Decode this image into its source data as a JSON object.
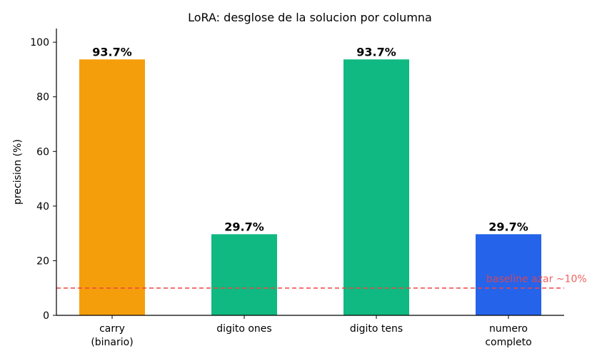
{
  "chart_data": {
    "type": "bar",
    "title": "LoRA: desglose de la solucion por columna",
    "ylabel": "precision (%)",
    "xlabel": "",
    "ylim": [
      0,
      105
    ],
    "yticks": [
      0,
      20,
      40,
      60,
      80,
      100
    ],
    "grid": false,
    "categories": [
      [
        "carry",
        "(binario)"
      ],
      [
        "digito ones"
      ],
      [
        "digito tens"
      ],
      [
        "numero",
        "completo"
      ]
    ],
    "values": [
      93.7,
      29.7,
      93.7,
      29.7
    ],
    "value_labels": [
      "93.7%",
      "29.7%",
      "93.7%",
      "29.7%"
    ],
    "bar_colors": [
      "#f59e0b",
      "#10b981",
      "#10b981",
      "#2563eb"
    ],
    "baseline": {
      "value": 10,
      "label": "baseline azar ~10%",
      "color": "#ef4444",
      "style": "dashed"
    }
  }
}
